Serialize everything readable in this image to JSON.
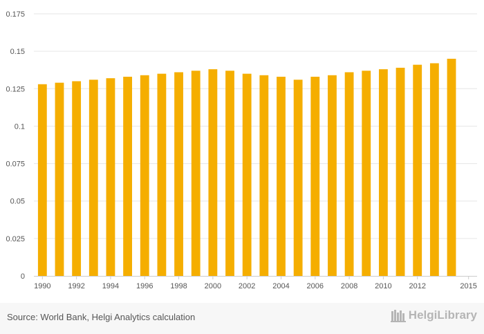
{
  "chart_data": {
    "type": "bar",
    "categories": [
      "1990",
      "1991",
      "1992",
      "1993",
      "1994",
      "1995",
      "1996",
      "1997",
      "1998",
      "1999",
      "2000",
      "2001",
      "2002",
      "2003",
      "2004",
      "2005",
      "2006",
      "2007",
      "2008",
      "2009",
      "2010",
      "2011",
      "2012",
      "2013",
      "2014",
      "2015"
    ],
    "x_tick_labels": [
      "1990",
      "1992",
      "1994",
      "1996",
      "1998",
      "2000",
      "2002",
      "2004",
      "2006",
      "2008",
      "2010",
      "2012",
      "2015"
    ],
    "values": [
      0.128,
      0.129,
      0.13,
      0.131,
      0.132,
      0.133,
      0.134,
      0.135,
      0.136,
      0.137,
      0.138,
      0.137,
      0.135,
      0.134,
      0.133,
      0.131,
      0.133,
      0.134,
      0.136,
      0.137,
      0.138,
      0.139,
      0.141,
      0.142,
      0.145,
      null
    ],
    "y_ticks": [
      "0",
      "0.025",
      "0.05",
      "0.075",
      "0.1",
      "0.125",
      "0.15",
      "0.175"
    ],
    "ylim": [
      0,
      0.175
    ],
    "bar_color": "#f5ae00",
    "grid": true,
    "title": "",
    "xlabel": "",
    "ylabel": ""
  },
  "footer": {
    "source": "Source: World Bank, Helgi Analytics calculation",
    "brand": "HelgiLibrary"
  },
  "colors": {
    "grid": "#e6e6e6",
    "axis": "#cccccc",
    "footer_bg": "#f7f7f7"
  }
}
